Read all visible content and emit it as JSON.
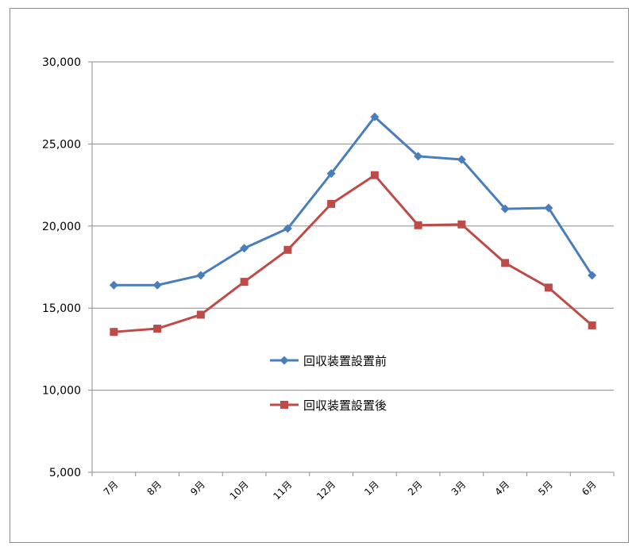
{
  "chart_data": {
    "type": "line",
    "categories": [
      "7月",
      "8月",
      "9月",
      "10月",
      "11月",
      "12月",
      "1月",
      "2月",
      "3月",
      "4月",
      "5月",
      "6月"
    ],
    "series": [
      {
        "name": "回収装置設置前",
        "color": "#4a7ebb",
        "marker": "diamond",
        "values": [
          16400,
          16400,
          17000,
          18650,
          19850,
          23200,
          26650,
          24250,
          24050,
          21050,
          21100,
          17000
        ]
      },
      {
        "name": "回収装置設置後",
        "color": "#be4b48",
        "marker": "square",
        "values": [
          13550,
          13750,
          14600,
          16600,
          18550,
          21350,
          23100,
          20050,
          20100,
          17750,
          16250,
          13950
        ]
      }
    ],
    "ylim": [
      5000,
      30000
    ],
    "yticks": [
      5000,
      10000,
      15000,
      20000,
      25000,
      30000
    ],
    "ytick_labels": [
      "5,000",
      "10,000",
      "15,000",
      "20,000",
      "25,000",
      "30,000"
    ],
    "grid": true,
    "legend_placement": "center"
  }
}
